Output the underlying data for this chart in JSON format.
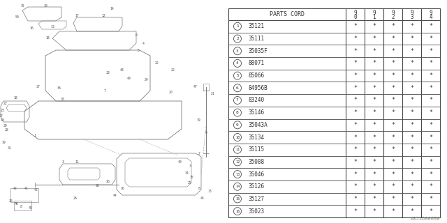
{
  "watermark": "A351D00090",
  "rows": [
    {
      "num": 1,
      "code": "35121"
    },
    {
      "num": 2,
      "code": "35111"
    },
    {
      "num": 3,
      "code": "35035F"
    },
    {
      "num": 4,
      "code": "88071"
    },
    {
      "num": 5,
      "code": "85066"
    },
    {
      "num": 6,
      "code": "84956B"
    },
    {
      "num": 7,
      "code": "83240"
    },
    {
      "num": 8,
      "code": "35146"
    },
    {
      "num": 9,
      "code": "35043A"
    },
    {
      "num": 10,
      "code": "35134"
    },
    {
      "num": 11,
      "code": "35115"
    },
    {
      "num": 12,
      "code": "35088"
    },
    {
      "num": 13,
      "code": "35046"
    },
    {
      "num": 14,
      "code": "35126"
    },
    {
      "num": 15,
      "code": "35127"
    },
    {
      "num": 16,
      "code": "35023"
    }
  ],
  "bg_color": "#ffffff",
  "line_color": "#4a4a4a",
  "text_color": "#333333",
  "diag_color": "#666666"
}
